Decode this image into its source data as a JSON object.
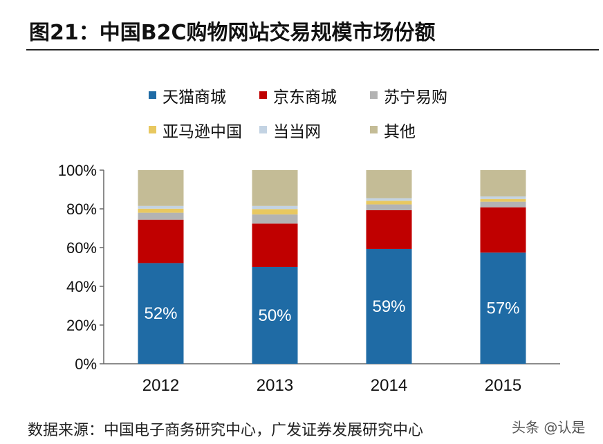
{
  "title": "图21：中国B2C购物网站交易规模市场份额",
  "source": "数据来源：中国电子商务研究中心，广发证券发展研究中心",
  "watermark": "头条 @认是",
  "chart_data": {
    "type": "bar",
    "stacked": true,
    "categories": [
      "2012",
      "2013",
      "2014",
      "2015"
    ],
    "ylim": [
      0,
      100
    ],
    "yticks": [
      "0%",
      "20%",
      "40%",
      "60%",
      "80%",
      "100%"
    ],
    "legend_position": "top",
    "grid": false,
    "series": [
      {
        "name": "天猫商城",
        "color": "#1F6BA5",
        "values": [
          52,
          50,
          59.3,
          57.4
        ],
        "labels": [
          "52%",
          "50%",
          "59%",
          "57%"
        ]
      },
      {
        "name": "京东商城",
        "color": "#C00000",
        "values": [
          22.4,
          22.4,
          20.0,
          23.4
        ]
      },
      {
        "name": "苏宁易购",
        "color": "#B3B3B3",
        "values": [
          3.6,
          4.7,
          3.0,
          2.9
        ]
      },
      {
        "name": "亚马逊中国",
        "color": "#E8C860",
        "values": [
          2.1,
          2.8,
          1.9,
          1.4
        ]
      },
      {
        "name": "当当网",
        "color": "#C3D3E3",
        "values": [
          1.4,
          1.6,
          1.3,
          1.3
        ]
      },
      {
        "name": "其他",
        "color": "#C4BC96",
        "values": [
          18.5,
          18.5,
          14.5,
          13.6
        ]
      }
    ]
  }
}
